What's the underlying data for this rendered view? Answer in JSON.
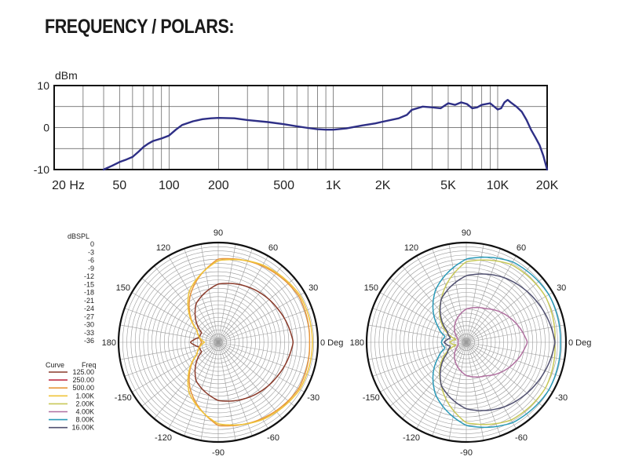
{
  "title": "FREQUENCY / POLARS:",
  "chart_data": [
    {
      "type": "line",
      "ylabel": "dBm",
      "ylim": [
        -10,
        10
      ],
      "xscale": "log",
      "xlim": [
        20,
        20000
      ],
      "x_tick_labels": [
        "20 Hz",
        "50",
        "100",
        "200",
        "500",
        "1K",
        "2K",
        "5K",
        "10K",
        "20K"
      ],
      "x_tick_values": [
        20,
        50,
        100,
        200,
        500,
        1000,
        2000,
        5000,
        10000,
        20000
      ],
      "y_tick_labels": [
        "10",
        "0",
        "-10"
      ],
      "y_tick_values": [
        10,
        0,
        -10
      ],
      "grid": true,
      "color": "#2e2f86",
      "series": [
        {
          "x": [
            40,
            45,
            50,
            55,
            60,
            65,
            70,
            75,
            80,
            90,
            100,
            110,
            120,
            140,
            160,
            180,
            200,
            250,
            300,
            400,
            500,
            600,
            700,
            800,
            900,
            1000,
            1200,
            1500,
            1800,
            2000,
            2500,
            2800,
            3000,
            3500,
            4000,
            4500,
            5000,
            5500,
            6000,
            6500,
            7000,
            7500,
            8000,
            9000,
            10000,
            10500,
            11000,
            11500,
            12000,
            13000,
            14000,
            15000,
            16000,
            17000,
            18000,
            19000,
            20000
          ],
          "y": [
            -10,
            -9.1,
            -8.2,
            -7.6,
            -7.0,
            -5.8,
            -4.6,
            -3.8,
            -3.2,
            -2.6,
            -1.9,
            -0.5,
            0.6,
            1.5,
            2.0,
            2.2,
            2.3,
            2.2,
            1.8,
            1.3,
            0.8,
            0.3,
            -0.1,
            -0.4,
            -0.5,
            -0.5,
            -0.2,
            0.5,
            1.0,
            1.4,
            2.2,
            3.0,
            4.2,
            5.0,
            4.8,
            4.6,
            5.8,
            5.4,
            6.0,
            5.6,
            4.6,
            4.8,
            5.4,
            5.8,
            4.3,
            4.6,
            6.0,
            6.6,
            6.0,
            5.0,
            3.8,
            1.8,
            -0.6,
            -2.4,
            -4.2,
            -6.8,
            -10
          ]
        }
      ]
    },
    {
      "type": "polar",
      "rlabel": "dBSPL",
      "rlim": [
        -36,
        0
      ],
      "r_tick_labels": [
        "0",
        "-3",
        "-6",
        "-9",
        "-12",
        "-15",
        "-18",
        "-21",
        "-24",
        "-27",
        "-30",
        "-33",
        "-36"
      ],
      "angle_labels": [
        {
          "angle": 0,
          "text": "0 Deg"
        },
        {
          "angle": 30,
          "text": "30"
        },
        {
          "angle": 60,
          "text": "60"
        },
        {
          "angle": 90,
          "text": "90"
        },
        {
          "angle": 120,
          "text": "120"
        },
        {
          "angle": 150,
          "text": "150"
        },
        {
          "angle": 180,
          "text": "180"
        },
        {
          "angle": -150,
          "text": "-150"
        },
        {
          "angle": -120,
          "text": "-120"
        },
        {
          "angle": -90,
          "text": "-90"
        },
        {
          "angle": -60,
          "text": "-60"
        },
        {
          "angle": -30,
          "text": "-30"
        }
      ],
      "legend": {
        "placement": "left",
        "headers": [
          "Curve",
          "Freq"
        ],
        "entries": [
          {
            "label": "125.00",
            "color": "#8a3a2a"
          },
          {
            "label": "250.00",
            "color": "#c0304a"
          },
          {
            "label": "500.00",
            "color": "#e8963a"
          },
          {
            "label": "1.00K",
            "color": "#f0c43a"
          },
          {
            "label": "2.00K",
            "color": "#c8c858"
          },
          {
            "label": "4.00K",
            "color": "#b070a0"
          },
          {
            "label": "8.00K",
            "color": "#2a9ab8"
          },
          {
            "label": "16.00K",
            "color": "#505070"
          }
        ]
      },
      "series": [
        {
          "name": "125.00",
          "color": "#8a3a2a",
          "angles": [
            0,
            30,
            60,
            90,
            120,
            150,
            165,
            180
          ],
          "values": [
            -9,
            -11.4,
            -13.2,
            -15,
            -20,
            -29,
            -29,
            -26
          ]
        },
        {
          "name": "500.00",
          "color": "#e8963a",
          "angles": [
            0,
            30,
            60,
            90,
            120,
            150,
            165,
            180
          ],
          "values": [
            -3,
            -2.5,
            -4.2,
            -6,
            -16,
            -27,
            -29,
            -30
          ]
        },
        {
          "name": "1.00K",
          "color": "#f0c43a",
          "angles": [
            0,
            30,
            60,
            90,
            120,
            150,
            165,
            180
          ],
          "values": [
            -2,
            -2,
            -3.8,
            -6.6,
            -15,
            -27,
            -29,
            -31
          ]
        }
      ]
    },
    {
      "type": "polar",
      "rlim": [
        -36,
        0
      ],
      "angle_labels": [
        {
          "angle": 0,
          "text": "0 Deg"
        },
        {
          "angle": 30,
          "text": "30"
        },
        {
          "angle": 60,
          "text": "60"
        },
        {
          "angle": 90,
          "text": "90"
        },
        {
          "angle": 120,
          "text": "120"
        },
        {
          "angle": 150,
          "text": "150"
        },
        {
          "angle": 180,
          "text": "180"
        },
        {
          "angle": -150,
          "text": "-150"
        },
        {
          "angle": -120,
          "text": "-120"
        },
        {
          "angle": -90,
          "text": "-90"
        },
        {
          "angle": -60,
          "text": "-60"
        },
        {
          "angle": -30,
          "text": "-30"
        }
      ],
      "series": [
        {
          "name": "2.00K",
          "color": "#c8c858",
          "angles": [
            0,
            30,
            60,
            90,
            120,
            150,
            165,
            180
          ],
          "values": [
            -4,
            -3,
            -3.6,
            -7,
            -18,
            -27,
            -32,
            -30
          ]
        },
        {
          "name": "4.00K",
          "color": "#b070a0",
          "angles": [
            0,
            30,
            60,
            90,
            120,
            150,
            165,
            180
          ],
          "values": [
            -14,
            -18,
            -22,
            -24,
            -28,
            -32,
            -33,
            -33
          ]
        },
        {
          "name": "8.00K",
          "color": "#2a9ab8",
          "angles": [
            0,
            30,
            60,
            90,
            120,
            150,
            165,
            180
          ],
          "values": [
            -2,
            -1.6,
            -2.5,
            -6,
            -14,
            -24,
            -28,
            -27
          ]
        },
        {
          "name": "16.00K",
          "color": "#505070",
          "angles": [
            0,
            30,
            60,
            90,
            120,
            150,
            165,
            180
          ],
          "values": [
            -4,
            -6.6,
            -9,
            -12,
            -18,
            -28,
            -30,
            -28
          ]
        }
      ]
    }
  ]
}
